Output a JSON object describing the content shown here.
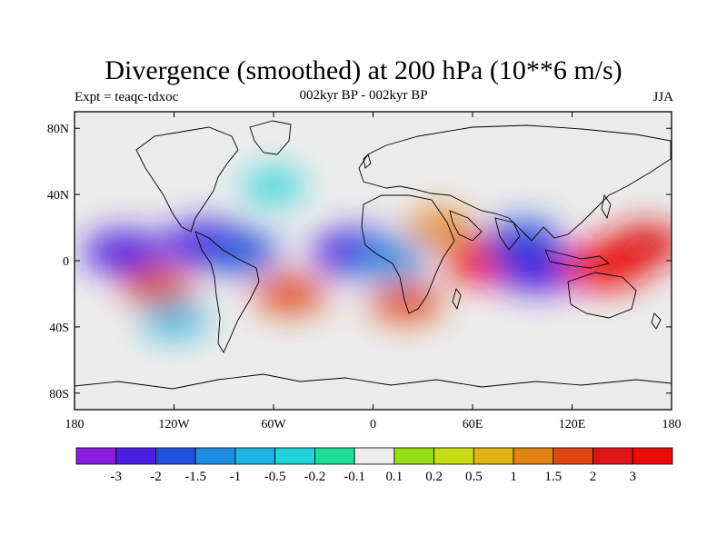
{
  "title": "Divergence (smoothed) at 200 hPa (10**6 m/s)",
  "subtitle_left": "Expt = teaqc-tdxoc",
  "subtitle_center": "002kyr BP - 002kyr BP",
  "subtitle_right": "JJA",
  "chart_data": {
    "type": "heatmap",
    "title": "Divergence (smoothed) at 200 hPa (10**6 m/s)",
    "projection": "cylindrical equidistant",
    "x_ticks": [
      "180",
      "120W",
      "60W",
      "0",
      "60E",
      "120E",
      "180"
    ],
    "x_values": [
      -180,
      -120,
      -60,
      0,
      60,
      120,
      180
    ],
    "y_ticks": [
      "80N",
      "40N",
      "0",
      "40S",
      "80S"
    ],
    "y_values": [
      80,
      40,
      0,
      -40,
      -80
    ],
    "xlim": [
      -180,
      180
    ],
    "ylim": [
      -90,
      90
    ],
    "colorbar_labels": [
      "-3",
      "-2",
      "-1.5",
      "-1",
      "-0.5",
      "-0.2",
      "-0.1",
      "0.1",
      "0.2",
      "0.5",
      "1",
      "1.5",
      "2",
      "3"
    ],
    "colorbar_colors": [
      "#8a1ee0",
      "#4a1ee0",
      "#1e50dc",
      "#1e8ce0",
      "#1eb4e0",
      "#1ed2d8",
      "#1edc9a",
      "#ececec",
      "#96dc14",
      "#c8dc14",
      "#e0b414",
      "#e08214",
      "#e04614",
      "#e01414",
      "#f00a0a"
    ],
    "features": [
      {
        "lon": -150,
        "lat": 5,
        "value": -2.5
      },
      {
        "lon": -100,
        "lat": 10,
        "value": -3
      },
      {
        "lon": -80,
        "lat": 5,
        "value": -2
      },
      {
        "lon": -10,
        "lat": 5,
        "value": -3
      },
      {
        "lon": 10,
        "lat": 0,
        "value": -1.5
      },
      {
        "lon": 70,
        "lat": 0,
        "value": 3
      },
      {
        "lon": 90,
        "lat": 12,
        "value": -2
      },
      {
        "lon": 100,
        "lat": -5,
        "value": -3
      },
      {
        "lon": 140,
        "lat": -3,
        "value": 3
      },
      {
        "lon": 165,
        "lat": 10,
        "value": 2
      },
      {
        "lon": -130,
        "lat": -15,
        "value": 1.5
      },
      {
        "lon": -50,
        "lat": -20,
        "value": 1.5
      },
      {
        "lon": 20,
        "lat": -25,
        "value": 1.5
      },
      {
        "lon": -120,
        "lat": -35,
        "value": -1
      },
      {
        "lon": 40,
        "lat": 20,
        "value": 1
      },
      {
        "lon": -60,
        "lat": 45,
        "value": -0.5
      }
    ]
  }
}
